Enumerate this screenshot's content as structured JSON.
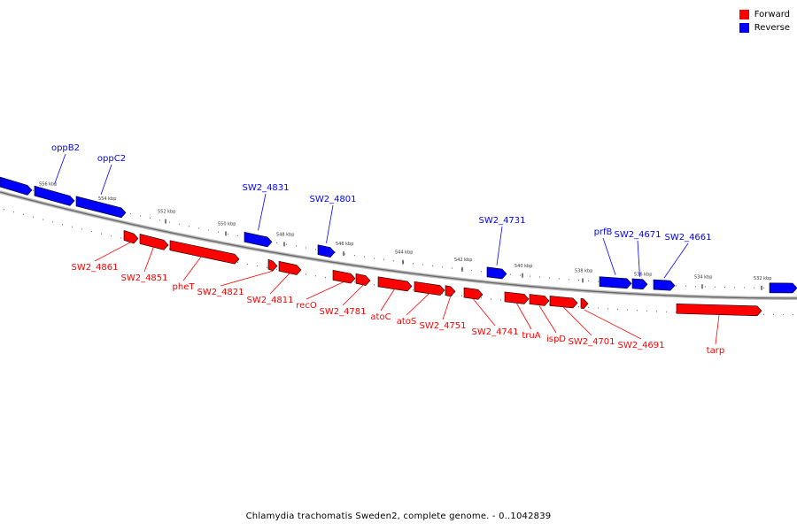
{
  "legend": {
    "forward_label": "Forward",
    "reverse_label": "Reverse",
    "forward_color": "#ff0000",
    "reverse_color": "#0000ff"
  },
  "caption": "Chlamydia trachomatis Sweden2, complete genome. - 0..1042839",
  "ticks": [
    "556 kbp",
    "554 kbp",
    "552 kbp",
    "550 kbp",
    "548 kbp",
    "546 kbp",
    "544 kbp",
    "542 kbp",
    "540 kbp",
    "538 kbp",
    "536 kbp",
    "534 kbp",
    "532 kbp"
  ],
  "genes": [
    {
      "name": "",
      "strand": "reverse"
    },
    {
      "name": "oppB2",
      "strand": "reverse"
    },
    {
      "name": "oppC2",
      "strand": "reverse"
    },
    {
      "name": "SW2_4861",
      "strand": "forward"
    },
    {
      "name": "SW2_4851",
      "strand": "forward"
    },
    {
      "name": "pheT",
      "strand": "forward"
    },
    {
      "name": "SW2_4831",
      "strand": "reverse"
    },
    {
      "name": "SW2_4821",
      "strand": "forward"
    },
    {
      "name": "SW2_4811",
      "strand": "forward"
    },
    {
      "name": "SW2_4801",
      "strand": "reverse"
    },
    {
      "name": "recO",
      "strand": "forward"
    },
    {
      "name": "SW2_4781",
      "strand": "forward"
    },
    {
      "name": "atoC",
      "strand": "forward"
    },
    {
      "name": "atoS",
      "strand": "forward"
    },
    {
      "name": "SW2_4751",
      "strand": "forward"
    },
    {
      "name": "SW2_4741",
      "strand": "forward"
    },
    {
      "name": "SW2_4731",
      "strand": "reverse"
    },
    {
      "name": "truA",
      "strand": "forward"
    },
    {
      "name": "ispD",
      "strand": "forward"
    },
    {
      "name": "SW2_4701",
      "strand": "forward"
    },
    {
      "name": "SW2_4691",
      "strand": "forward"
    },
    {
      "name": "prfB",
      "strand": "reverse"
    },
    {
      "name": "SW2_4671",
      "strand": "reverse"
    },
    {
      "name": "SW2_4661",
      "strand": "reverse"
    },
    {
      "name": "tarp",
      "strand": "forward"
    },
    {
      "name": "",
      "strand": "reverse"
    }
  ]
}
